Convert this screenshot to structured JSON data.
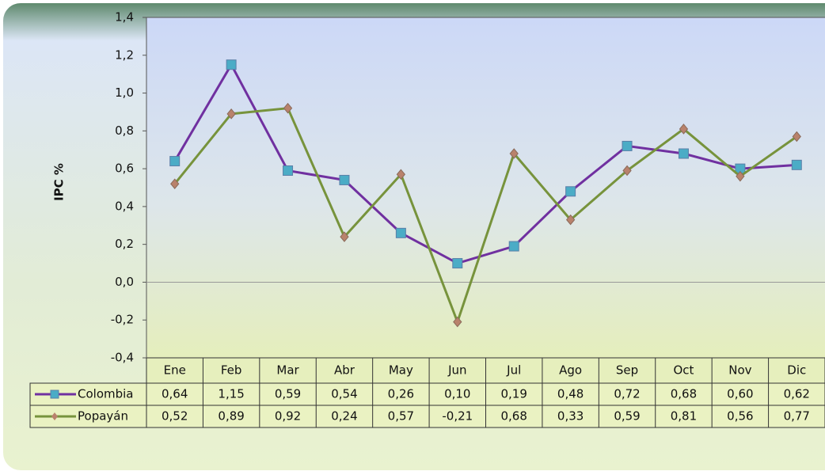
{
  "chart_data": {
    "type": "line",
    "y_label": "IPC %",
    "categories": [
      "Ene",
      "Feb",
      "Mar",
      "Abr",
      "May",
      "Jun",
      "Jul",
      "Ago",
      "Sep",
      "Oct",
      "Nov",
      "Dic"
    ],
    "series": [
      {
        "name": "Colombia",
        "color": "#7030a0",
        "marker_color": "#4bacc6",
        "values": [
          0.64,
          1.15,
          0.59,
          0.54,
          0.26,
          0.1,
          0.19,
          0.48,
          0.72,
          0.68,
          0.6,
          0.62
        ],
        "value_labels": [
          "0,64",
          "1,15",
          "0,59",
          "0,54",
          "0,26",
          "0,10",
          "0,19",
          "0,48",
          "0,72",
          "0,68",
          "0,60",
          "0,62"
        ]
      },
      {
        "name": "Popayán",
        "color": "#77933c",
        "marker_color": "#b9826c",
        "values": [
          0.52,
          0.89,
          0.92,
          0.24,
          0.57,
          -0.21,
          0.68,
          0.33,
          0.59,
          0.81,
          0.56,
          0.77
        ],
        "value_labels": [
          "0,52",
          "0,89",
          "0,92",
          "0,24",
          "0,57",
          "-0,21",
          "0,68",
          "0,33",
          "0,59",
          "0,81",
          "0,56",
          "0,77"
        ]
      }
    ],
    "ylim": [
      -0.4,
      1.4
    ],
    "yticks": [
      {
        "value": -0.4,
        "label": "-0,4"
      },
      {
        "value": -0.2,
        "label": "-0,2"
      },
      {
        "value": 0,
        "label": "0,0"
      },
      {
        "value": 0.2,
        "label": "0,2"
      },
      {
        "value": 0.4,
        "label": "0,4"
      },
      {
        "value": 0.6,
        "label": "0,6"
      },
      {
        "value": 0.8,
        "label": "0,8"
      },
      {
        "value": 1.0,
        "label": "1,0"
      },
      {
        "value": 1.2,
        "label": "1,2"
      },
      {
        "value": 1.4,
        "label": "1,4"
      }
    ],
    "grid": false
  }
}
